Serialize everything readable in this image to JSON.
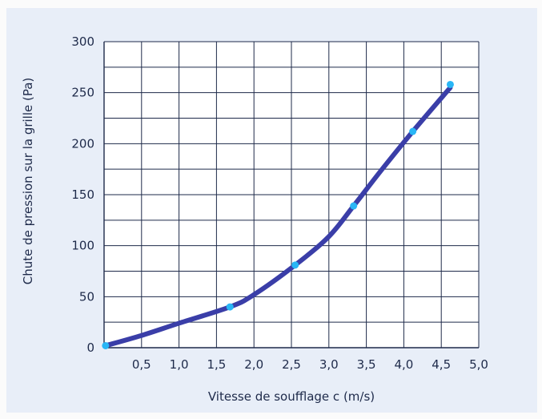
{
  "chart_data": {
    "type": "line",
    "title": "",
    "xlabel": "Vitesse de soufflage c (m/s)",
    "ylabel": "Chute de pression sur la grille (Pa)",
    "xlim": [
      0,
      5
    ],
    "ylim": [
      0,
      300
    ],
    "x_ticks": [
      "0,5",
      "1,0",
      "1,5",
      "2,0",
      "2,5",
      "3,0",
      "3,5",
      "4,0",
      "4,5",
      "5,0"
    ],
    "x_tick_values": [
      0.5,
      1.0,
      1.5,
      2.0,
      2.5,
      3.0,
      3.5,
      4.0,
      4.5,
      5.0
    ],
    "y_ticks": [
      "0",
      "50",
      "100",
      "150",
      "200",
      "250",
      "300"
    ],
    "y_tick_values": [
      0,
      50,
      100,
      150,
      200,
      250,
      300
    ],
    "grid": true,
    "series": [
      {
        "color": "#3a3ea8",
        "marker_color": "#29b6f6",
        "x": [
          0.02,
          1.68,
          2.55,
          3.33,
          4.12,
          4.62
        ],
        "y": [
          2,
          40,
          81,
          139,
          212,
          258
        ],
        "curve_x": [
          0.02,
          0.5,
          1.0,
          1.68,
          2.0,
          2.55,
          3.0,
          3.33,
          3.7,
          4.12,
          4.62
        ],
        "curve_y": [
          2,
          12,
          24,
          40,
          52,
          81,
          109,
          139,
          174,
          212,
          255
        ]
      }
    ]
  }
}
